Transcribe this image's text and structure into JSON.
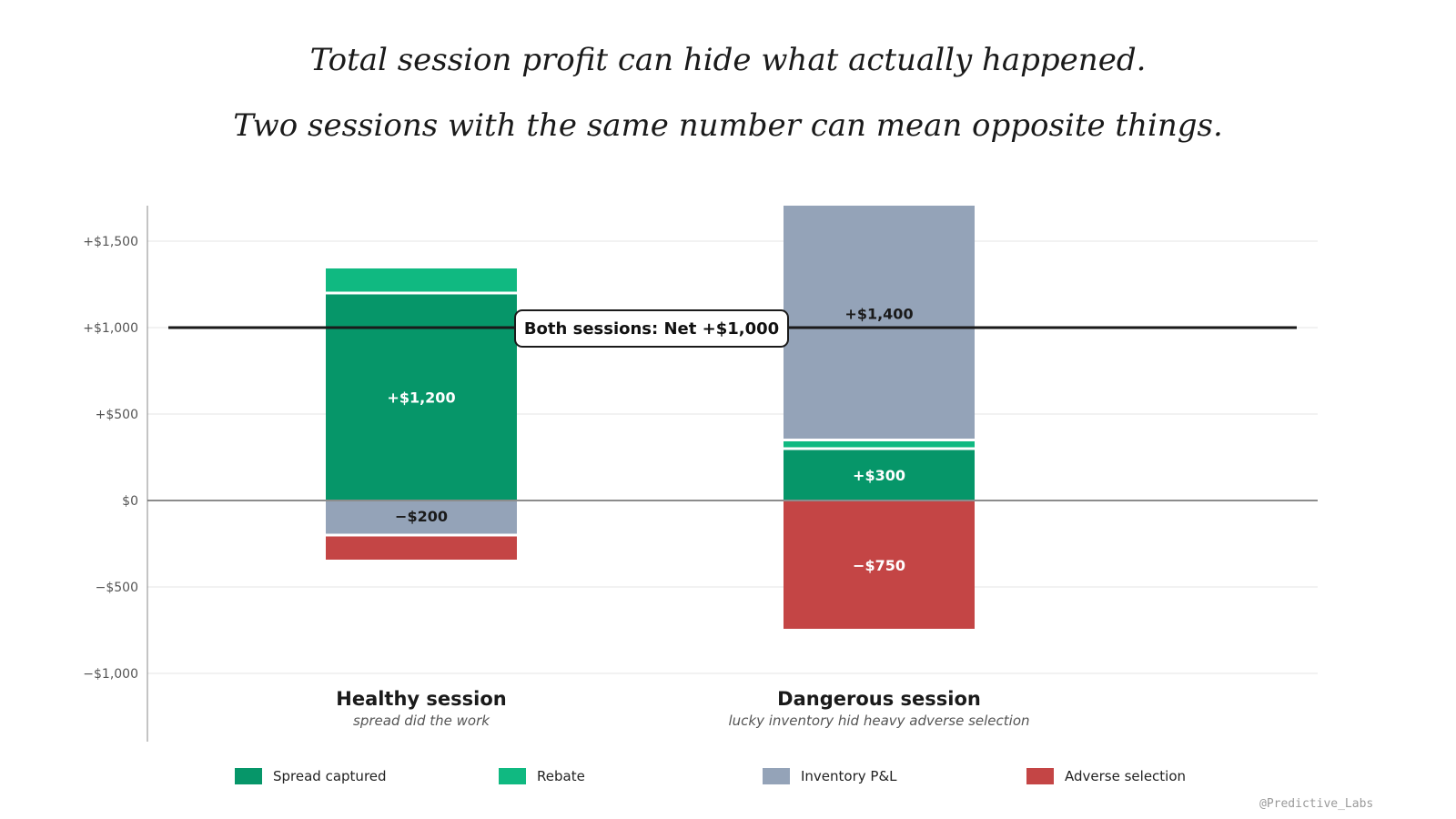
{
  "header": {
    "title": "Total session profit can hide what actually happened.",
    "subtitle": "Two sessions with the same number can mean opposite things."
  },
  "chart_data": {
    "type": "bar",
    "stacked": true,
    "ylim": [
      -1400,
      1700
    ],
    "yticks": [
      {
        "value": 1500,
        "label": "+$1,500"
      },
      {
        "value": 1000,
        "label": "+$1,000"
      },
      {
        "value": 500,
        "label": "+$500"
      },
      {
        "value": 0,
        "label": "$0"
      },
      {
        "value": -500,
        "label": "−$500"
      },
      {
        "value": -1000,
        "label": "−$1,000"
      }
    ],
    "grid": true,
    "categories": [
      {
        "name": "Healthy session",
        "subtitle": "spread did the work"
      },
      {
        "name": "Dangerous session",
        "subtitle": "lucky inventory hid heavy adverse selection"
      }
    ],
    "series": [
      {
        "name": "Spread captured",
        "color": "#069669",
        "values": [
          1200,
          300
        ],
        "labels": [
          "+$1,200",
          "+$300"
        ],
        "label_color": "#ffffff"
      },
      {
        "name": "Rebate",
        "color": "#10b981",
        "values": [
          150,
          50
        ],
        "labels": [
          "",
          ""
        ],
        "label_color": "#ffffff"
      },
      {
        "name": "Inventory P&L",
        "color": "#94a3b8",
        "values": [
          -200,
          1400
        ],
        "labels": [
          "−$200",
          "+$1,400"
        ],
        "label_color": "#1a1a1a"
      },
      {
        "name": "Adverse selection",
        "color": "#c44545",
        "values": [
          -150,
          -750
        ],
        "labels": [
          "",
          "−$750"
        ],
        "label_color": "#ffffff"
      }
    ],
    "reference_line": {
      "value": 1000,
      "label": "Both sessions: Net +$1,000"
    },
    "legend_position": "bottom"
  },
  "footer": {
    "watermark": "@Predictive_Labs"
  }
}
